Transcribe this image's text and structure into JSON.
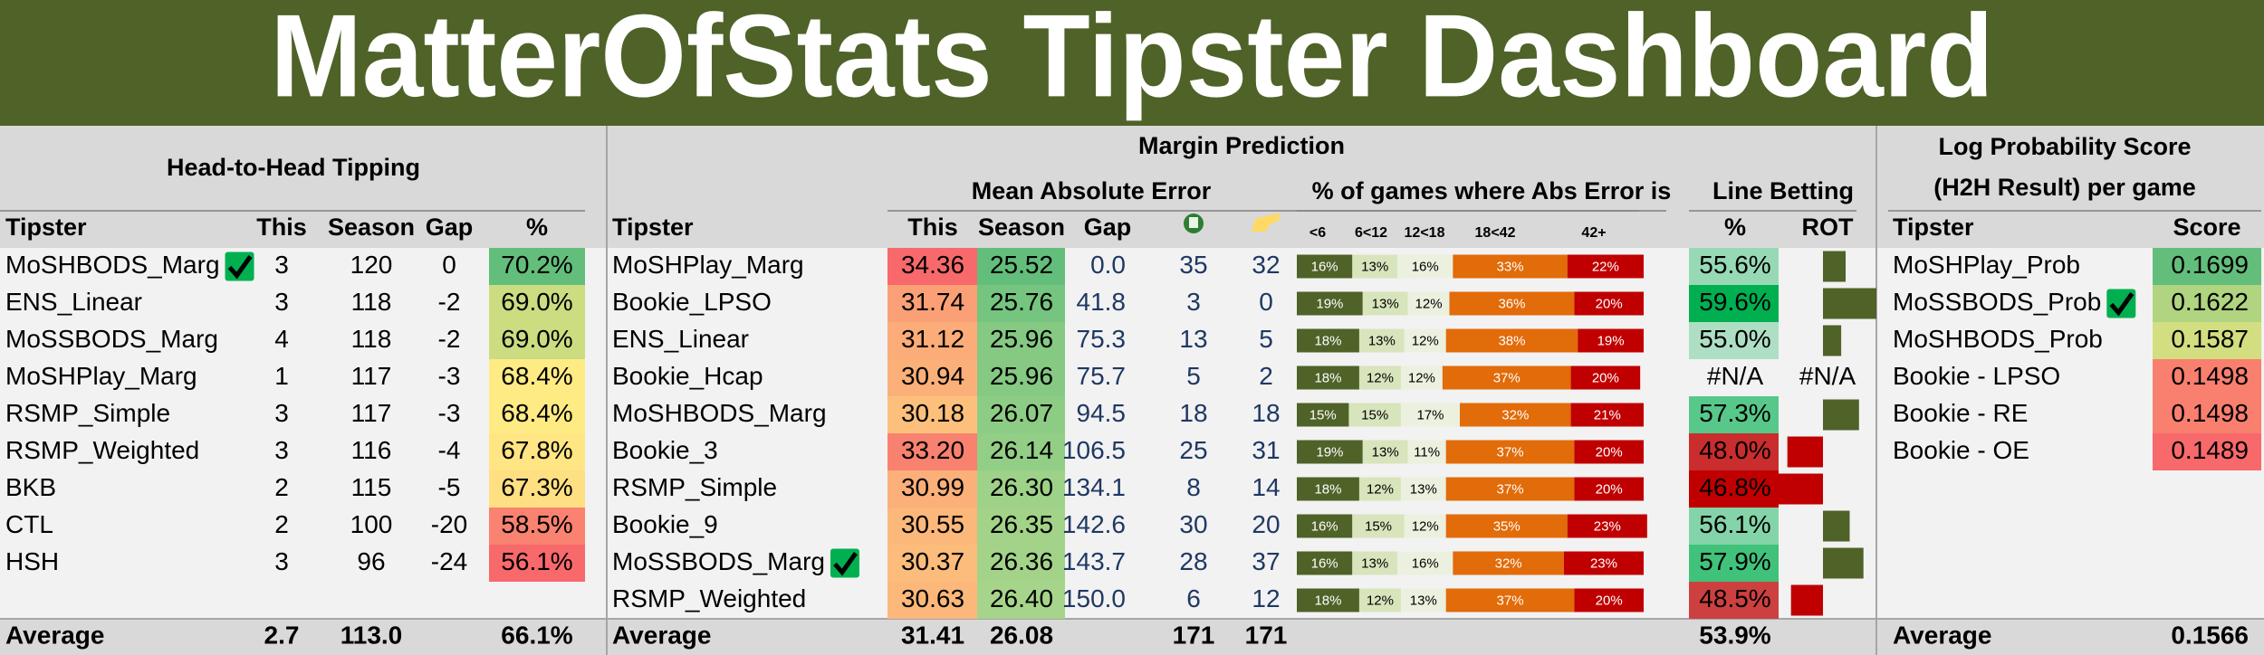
{
  "header": {
    "title": "MatterOfStats Tipster Dashboard"
  },
  "h2h": {
    "title": "Head-to-Head Tipping",
    "columns": {
      "tipster": "Tipster",
      "this": "This",
      "season": "Season",
      "gap": "Gap",
      "pct": "%"
    },
    "rows": [
      {
        "tipster": "MoSHBODS_Marg",
        "check": true,
        "this": "3",
        "season": "120",
        "gap": "0",
        "pct": "70.2%"
      },
      {
        "tipster": "ENS_Linear",
        "this": "3",
        "season": "118",
        "gap": "-2",
        "pct": "69.0%"
      },
      {
        "tipster": "MoSSBODS_Marg",
        "this": "4",
        "season": "118",
        "gap": "-2",
        "pct": "69.0%"
      },
      {
        "tipster": "MoSHPlay_Marg",
        "this": "1",
        "season": "117",
        "gap": "-3",
        "pct": "68.4%"
      },
      {
        "tipster": "RSMP_Simple",
        "this": "3",
        "season": "117",
        "gap": "-3",
        "pct": "68.4%"
      },
      {
        "tipster": "RSMP_Weighted",
        "this": "3",
        "season": "116",
        "gap": "-4",
        "pct": "67.8%"
      },
      {
        "tipster": "BKB",
        "this": "2",
        "season": "115",
        "gap": "-5",
        "pct": "67.3%"
      },
      {
        "tipster": "CTL",
        "this": "2",
        "season": "100",
        "gap": "-20",
        "pct": "58.5%"
      },
      {
        "tipster": "HSH",
        "this": "3",
        "season": "96",
        "gap": "-24",
        "pct": "56.1%"
      }
    ],
    "average": {
      "label": "Average",
      "this": "2.7",
      "season": "113.0",
      "pct": "66.1%"
    }
  },
  "margin": {
    "title": "Margin Prediction",
    "mae_title": "Mean Absolute Error",
    "dist_title": "% of games where Abs Error is",
    "line_title": "Line Betting",
    "columns": {
      "tipster": "Tipster",
      "this": "This",
      "season": "Season",
      "gap": "Gap",
      "line_pct": "%",
      "rot": "ROT"
    },
    "dist_bins": [
      "<6",
      "6<12",
      "12<18",
      "18<42",
      "42+"
    ],
    "dist_colors": [
      "#4f6228",
      "#d8e4bc",
      "#ebf1de",
      "#e26b0a",
      "#c00000"
    ],
    "rot_colors": {
      "positive": "#4f6228",
      "negative": "#c00000"
    },
    "rows": [
      {
        "tipster": "MoSHPlay_Marg",
        "this": "34.36",
        "season": "25.52",
        "gap": "0.0",
        "icon1": "35",
        "icon2": "32",
        "dist": [
          16,
          13,
          16,
          33,
          22
        ],
        "dist_labels": [
          "16%",
          "13%",
          "16%",
          "33%",
          "22%"
        ],
        "line_pct": "55.6%",
        "rot": 0.056
      },
      {
        "tipster": "Bookie_LPSO",
        "this": "31.74",
        "season": "25.76",
        "gap": "41.8",
        "icon1": "3",
        "icon2": "0",
        "dist": [
          19,
          13,
          12,
          36,
          20
        ],
        "dist_labels": [
          "19%",
          "13%",
          "12%",
          "36%",
          "20%"
        ],
        "line_pct": "59.6%",
        "rot": 0.132
      },
      {
        "tipster": "ENS_Linear",
        "this": "31.12",
        "season": "25.96",
        "gap": "75.3",
        "icon1": "13",
        "icon2": "5",
        "dist": [
          18,
          13,
          12,
          38,
          19
        ],
        "dist_labels": [
          "18%",
          "13%",
          "12%",
          "38%",
          "19%"
        ],
        "line_pct": "55.0%",
        "rot": 0.045
      },
      {
        "tipster": "Bookie_Hcap",
        "this": "30.94",
        "season": "25.96",
        "gap": "75.7",
        "icon1": "5",
        "icon2": "2",
        "dist": [
          18,
          12,
          12,
          37,
          20
        ],
        "dist_labels": [
          "18%",
          "12%",
          "12%",
          "37%",
          "20%"
        ],
        "line_pct": "#N/A",
        "rot": "#N/A"
      },
      {
        "tipster": "MoSHBODS_Marg",
        "this": "30.18",
        "season": "26.07",
        "gap": "94.5",
        "icon1": "18",
        "icon2": "18",
        "dist": [
          15,
          15,
          17,
          32,
          21
        ],
        "dist_labels": [
          "15%",
          "15%",
          "17%",
          "32%",
          "21%"
        ],
        "line_pct": "57.3%",
        "rot": 0.089
      },
      {
        "tipster": "Bookie_3",
        "this": "33.20",
        "season": "26.14",
        "gap": "106.5",
        "icon1": "25",
        "icon2": "31",
        "dist": [
          19,
          13,
          11,
          37,
          20
        ],
        "dist_labels": [
          "19%",
          "13%",
          "11%",
          "37%",
          "20%"
        ],
        "line_pct": "48.0%",
        "rot": -0.088
      },
      {
        "tipster": "RSMP_Simple",
        "this": "30.99",
        "season": "26.30",
        "gap": "134.1",
        "icon1": "8",
        "icon2": "14",
        "dist": [
          18,
          12,
          13,
          37,
          20
        ],
        "dist_labels": [
          "18%",
          "12%",
          "13%",
          "37%",
          "20%"
        ],
        "line_pct": "46.8%",
        "rot": -0.111
      },
      {
        "tipster": "Bookie_9",
        "this": "30.55",
        "season": "26.35",
        "gap": "142.6",
        "icon1": "30",
        "icon2": "20",
        "dist": [
          16,
          15,
          12,
          35,
          23
        ],
        "dist_labels": [
          "16%",
          "15%",
          "12%",
          "35%",
          "23%"
        ],
        "line_pct": "56.1%",
        "rot": 0.066
      },
      {
        "tipster": "MoSSBODS_Marg",
        "check": true,
        "this": "30.37",
        "season": "26.36",
        "gap": "143.7",
        "icon1": "28",
        "icon2": "37",
        "dist": [
          16,
          13,
          16,
          32,
          23
        ],
        "dist_labels": [
          "16%",
          "13%",
          "16%",
          "32%",
          "23%"
        ],
        "line_pct": "57.9%",
        "rot": 0.1
      },
      {
        "tipster": "RSMP_Weighted",
        "this": "30.63",
        "season": "26.40",
        "gap": "150.0",
        "icon1": "6",
        "icon2": "12",
        "dist": [
          18,
          12,
          13,
          37,
          20
        ],
        "dist_labels": [
          "18%",
          "12%",
          "13%",
          "37%",
          "20%"
        ],
        "line_pct": "48.5%",
        "rot": -0.079
      }
    ],
    "average": {
      "label": "Average",
      "this": "31.41",
      "season": "26.08",
      "icon1": "171",
      "icon2": "171",
      "line_pct": "53.9%"
    }
  },
  "log_prob": {
    "title": "Log Probability Score",
    "subtitle": "(H2H Result) per game",
    "columns": {
      "tipster": "Tipster",
      "score": "Score"
    },
    "rows": [
      {
        "tipster": "MoSHPlay_Prob",
        "score": "0.1699"
      },
      {
        "tipster": "MoSSBODS_Prob",
        "check": true,
        "score": "0.1622"
      },
      {
        "tipster": "MoSHBODS_Prob",
        "score": "0.1587"
      },
      {
        "tipster": "Bookie - LPSO",
        "score": "0.1498"
      },
      {
        "tipster": "Bookie - RE",
        "score": "0.1498"
      },
      {
        "tipster": "Bookie - OE",
        "score": "0.1489"
      }
    ],
    "average": {
      "label": "Average",
      "score": "0.1566"
    }
  }
}
